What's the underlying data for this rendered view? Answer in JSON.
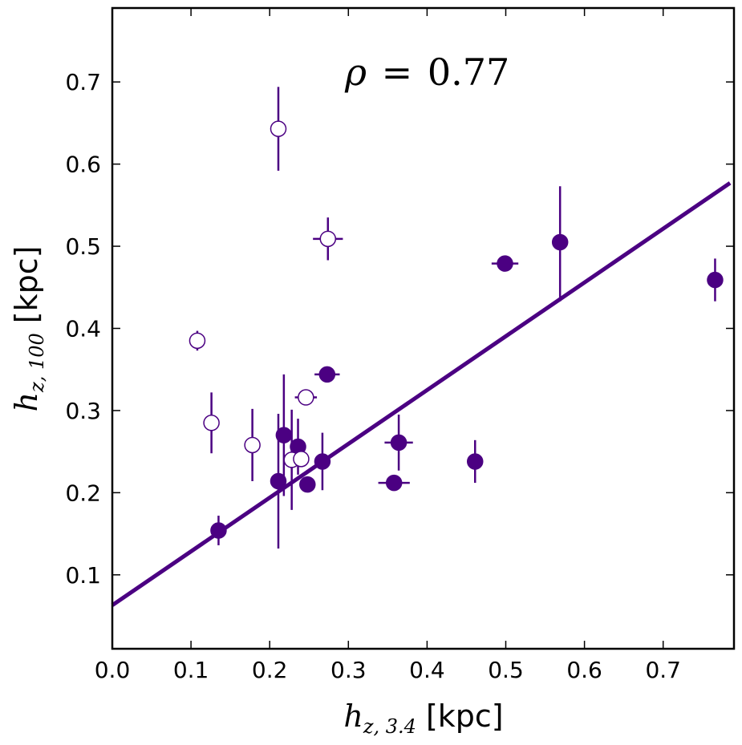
{
  "chart_data": {
    "type": "scatter",
    "title": "",
    "annotation": {
      "symbol": "ρ",
      "equals": "=",
      "value": "0.77"
    },
    "xlabel": {
      "symbol": "h",
      "sub": "z, 3.4",
      "unit": "[kpc]"
    },
    "ylabel": {
      "symbol": "h",
      "sub": "z, 100",
      "unit": "[kpc]"
    },
    "xlim": [
      0.0,
      0.79
    ],
    "ylim": [
      0.01,
      0.79
    ],
    "xticks": [
      "0.0",
      "0.1",
      "0.2",
      "0.3",
      "0.4",
      "0.5",
      "0.6",
      "0.7"
    ],
    "yticks": [
      "0.1",
      "0.2",
      "0.3",
      "0.4",
      "0.5",
      "0.6",
      "0.7"
    ],
    "colors": {
      "series": "#4b0082",
      "axis": "#000000",
      "open_fill": "#ffffff"
    },
    "fit_line": {
      "x": [
        0.0,
        0.785
      ],
      "y": [
        0.063,
        0.577
      ]
    },
    "series": [
      {
        "name": "filled",
        "points": [
          {
            "x": 0.135,
            "y": 0.154,
            "yerr": [
              0.018,
              0.018
            ],
            "xerr": [
              0,
              0
            ]
          },
          {
            "x": 0.211,
            "y": 0.214,
            "yerr": [
              0.082,
              0.082
            ],
            "xerr": [
              0,
              0
            ]
          },
          {
            "x": 0.218,
            "y": 0.27,
            "yerr": [
              0.074,
              0.074
            ],
            "xerr": [
              0,
              0
            ]
          },
          {
            "x": 0.236,
            "y": 0.256,
            "yerr": [
              0.034,
              0.034
            ],
            "xerr": [
              0,
              0
            ]
          },
          {
            "x": 0.248,
            "y": 0.21,
            "yerr": [
              0,
              0
            ],
            "xerr": [
              0,
              0
            ]
          },
          {
            "x": 0.267,
            "y": 0.238,
            "yerr": [
              0.035,
              0.035
            ],
            "xerr": [
              0,
              0
            ]
          },
          {
            "x": 0.273,
            "y": 0.344,
            "yerr": [
              0,
              0
            ],
            "xerr": [
              0.016,
              0.016
            ]
          },
          {
            "x": 0.358,
            "y": 0.212,
            "yerr": [
              0,
              0
            ],
            "xerr": [
              0.02,
              0.02
            ]
          },
          {
            "x": 0.364,
            "y": 0.261,
            "yerr": [
              0.034,
              0.034
            ],
            "xerr": [
              0.018,
              0.018
            ]
          },
          {
            "x": 0.461,
            "y": 0.238,
            "yerr": [
              0.026,
              0.026
            ],
            "xerr": [
              0,
              0
            ]
          },
          {
            "x": 0.499,
            "y": 0.479,
            "yerr": [
              0,
              0
            ],
            "xerr": [
              0.017,
              0.017
            ]
          },
          {
            "x": 0.569,
            "y": 0.505,
            "yerr": [
              0.072,
              0.068
            ],
            "xerr": [
              0,
              0
            ]
          },
          {
            "x": 0.766,
            "y": 0.459,
            "yerr": [
              0.026,
              0.026
            ],
            "xerr": [
              0,
              0
            ]
          }
        ]
      },
      {
        "name": "open",
        "points": [
          {
            "x": 0.108,
            "y": 0.385,
            "yerr": [
              0.012,
              0.012
            ],
            "xerr": [
              0,
              0
            ]
          },
          {
            "x": 0.126,
            "y": 0.285,
            "yerr": [
              0.037,
              0.037
            ],
            "xerr": [
              0,
              0
            ]
          },
          {
            "x": 0.178,
            "y": 0.258,
            "yerr": [
              0.044,
              0.044
            ],
            "xerr": [
              0,
              0
            ]
          },
          {
            "x": 0.211,
            "y": 0.643,
            "yerr": [
              0.051,
              0.051
            ],
            "xerr": [
              0,
              0
            ]
          },
          {
            "x": 0.228,
            "y": 0.24,
            "yerr": [
              0.061,
              0.061
            ],
            "xerr": [
              0,
              0
            ]
          },
          {
            "x": 0.24,
            "y": 0.241,
            "yerr": [
              0,
              0
            ],
            "xerr": [
              0,
              0
            ]
          },
          {
            "x": 0.246,
            "y": 0.316,
            "yerr": [
              0,
              0
            ],
            "xerr": [
              0.014,
              0.014
            ]
          },
          {
            "x": 0.274,
            "y": 0.509,
            "yerr": [
              0.026,
              0.026
            ],
            "xerr": [
              0.019,
              0.019
            ]
          }
        ]
      }
    ]
  }
}
